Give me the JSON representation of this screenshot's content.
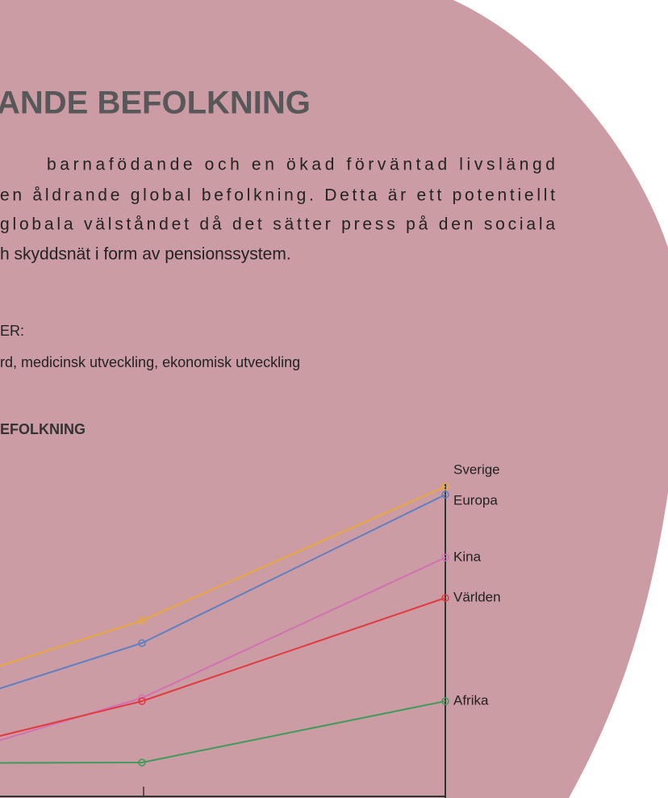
{
  "heading": "ANDE BEFOLKNING",
  "paragraph": [
    "barnafödande och en ökad förväntad livslängd",
    "en åldrande global befolkning. Detta är ett potentiellt",
    "globala välståndet då det sätter press på den sociala",
    "h skyddsnät i form av pensionssystem."
  ],
  "factors": {
    "label": "ER:",
    "text": "rd, medicinsk utveckling, ekonomisk utveckling"
  },
  "chart_data": {
    "type": "line",
    "title": "EFOLKNING",
    "categories": [
      null,
      null,
      null
    ],
    "ylim": [
      0,
      100
    ],
    "series": [
      {
        "name": "Sverige",
        "color": "#e9a83a",
        "values": [
          25,
          55,
          96.5
        ]
      },
      {
        "name": "Europa",
        "color": "#5f7fc0",
        "values": [
          18,
          48,
          94
        ]
      },
      {
        "name": "Kina",
        "color": "#d171b2",
        "values": [
          3,
          31,
          74.5
        ]
      },
      {
        "name": "Världen",
        "color": "#e2393f",
        "values": [
          7,
          30,
          62
        ]
      },
      {
        "name": "Afrika",
        "color": "#3f9a5b",
        "values": [
          10.75,
          11,
          30
        ]
      }
    ]
  }
}
